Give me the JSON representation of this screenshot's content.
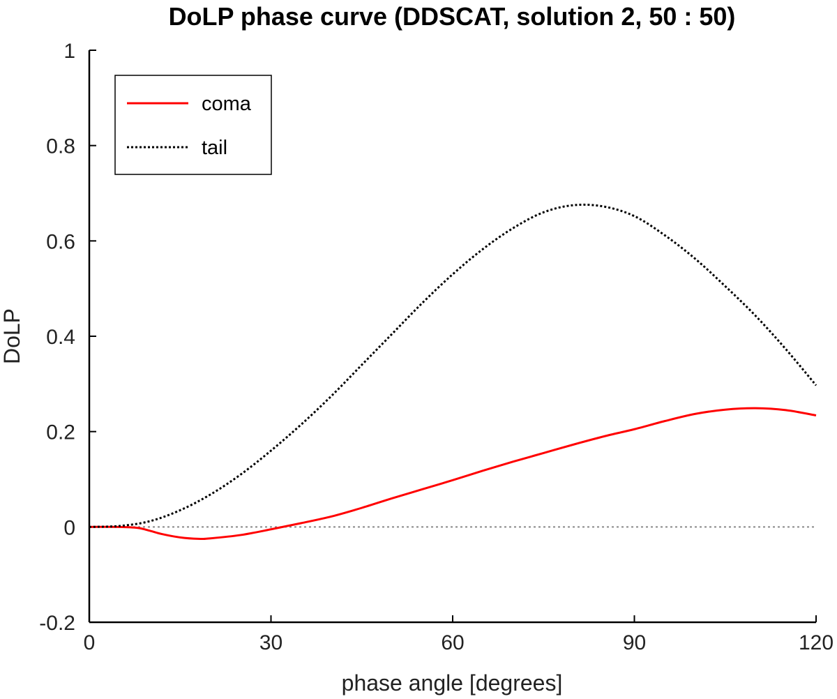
{
  "chart_data": {
    "type": "line",
    "title": "DoLP phase curve (DDSCAT, solution 2, 50 : 50)",
    "xlabel": "phase angle [degrees]",
    "ylabel": "DoLP",
    "xlim": [
      0,
      120
    ],
    "ylim": [
      -0.2,
      1
    ],
    "xticks": [
      0,
      30,
      60,
      90,
      120
    ],
    "xtick_labels": [
      "0",
      "30",
      "60",
      "90",
      "120"
    ],
    "yticks": [
      -0.2,
      0,
      0.2,
      0.4,
      0.6,
      0.8,
      1
    ],
    "ytick_labels": [
      "-0.2",
      "0",
      "0.2",
      "0.4",
      "0.6",
      "0.8",
      "1"
    ],
    "grid": false,
    "legend_position": "top-left",
    "reference_line": {
      "y": 0,
      "style": "dotted",
      "color": "#888888"
    },
    "series": [
      {
        "name": "coma",
        "color": "#ff0000",
        "style": "solid",
        "x": [
          0,
          5,
          8,
          10,
          12,
          15,
          18,
          20,
          25,
          30,
          35,
          40,
          45,
          50,
          55,
          60,
          65,
          70,
          75,
          80,
          85,
          90,
          95,
          100,
          105,
          110,
          115,
          120
        ],
        "y": [
          0,
          0,
          -0.002,
          -0.008,
          -0.015,
          -0.022,
          -0.025,
          -0.024,
          -0.017,
          -0.005,
          0.008,
          0.022,
          0.04,
          0.06,
          0.079,
          0.098,
          0.118,
          0.137,
          0.155,
          0.173,
          0.19,
          0.205,
          0.222,
          0.237,
          0.246,
          0.249,
          0.245,
          0.234
        ]
      },
      {
        "name": "tail",
        "color": "#000000",
        "style": "dotted",
        "x": [
          0,
          5,
          10,
          15,
          20,
          25,
          30,
          35,
          40,
          45,
          50,
          55,
          60,
          65,
          70,
          75,
          80,
          85,
          90,
          95,
          100,
          105,
          110,
          115,
          120
        ],
        "y": [
          0,
          0.002,
          0.012,
          0.035,
          0.068,
          0.11,
          0.16,
          0.215,
          0.275,
          0.34,
          0.405,
          0.47,
          0.53,
          0.583,
          0.627,
          0.66,
          0.675,
          0.672,
          0.652,
          0.612,
          0.563,
          0.505,
          0.443,
          0.373,
          0.297
        ]
      }
    ]
  }
}
